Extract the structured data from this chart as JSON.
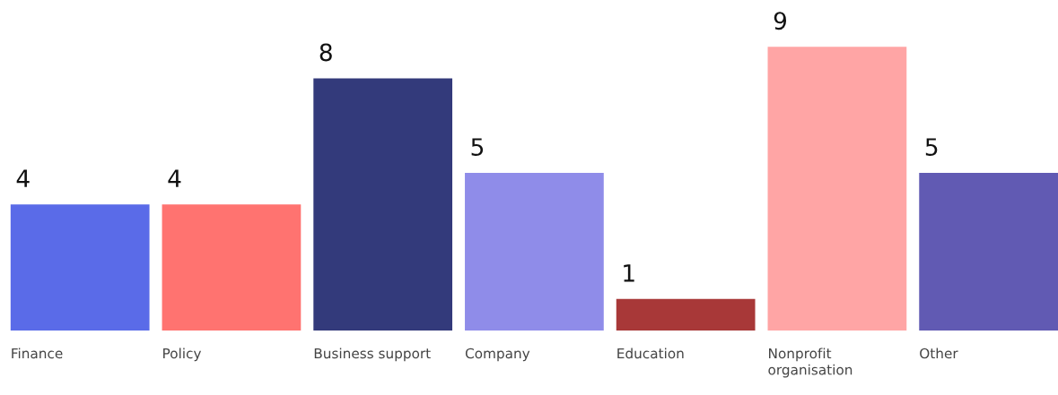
{
  "chart_data": {
    "type": "bar",
    "categories": [
      "Finance",
      "Policy",
      "Business support",
      "Company",
      "Education",
      "Nonprofit organisation",
      "Other"
    ],
    "values": [
      4,
      4,
      8,
      5,
      1,
      9,
      5
    ],
    "colors": [
      "#5a6be8",
      "#ff7370",
      "#333a7b",
      "#8f8ce9",
      "#a83838",
      "#ffa5a5",
      "#615ab3"
    ],
    "data_labels": true
  }
}
